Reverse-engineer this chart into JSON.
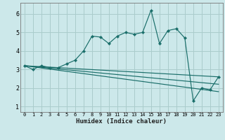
{
  "xlabel": "Humidex (Indice chaleur)",
  "background_color": "#cce8ea",
  "grid_color": "#aacccc",
  "line_color": "#1a6e6a",
  "xlim": [
    -0.5,
    23.5
  ],
  "ylim": [
    0.7,
    6.6
  ],
  "xticks": [
    0,
    1,
    2,
    3,
    4,
    5,
    6,
    7,
    8,
    9,
    10,
    11,
    12,
    13,
    14,
    15,
    16,
    17,
    18,
    19,
    20,
    21,
    22,
    23
  ],
  "yticks": [
    1,
    2,
    3,
    4,
    5,
    6
  ],
  "series": [
    [
      0,
      3.2
    ],
    [
      1,
      3.0
    ],
    [
      2,
      3.2
    ],
    [
      3,
      3.1
    ],
    [
      4,
      3.1
    ],
    [
      5,
      3.3
    ],
    [
      6,
      3.5
    ],
    [
      7,
      4.0
    ],
    [
      8,
      4.8
    ],
    [
      9,
      4.75
    ],
    [
      10,
      4.4
    ],
    [
      11,
      4.8
    ],
    [
      12,
      5.0
    ],
    [
      13,
      4.9
    ],
    [
      14,
      5.0
    ],
    [
      15,
      6.2
    ],
    [
      16,
      4.4
    ],
    [
      17,
      5.1
    ],
    [
      18,
      5.2
    ],
    [
      19,
      4.7
    ],
    [
      20,
      1.3
    ],
    [
      21,
      2.0
    ],
    [
      22,
      1.9
    ],
    [
      23,
      2.6
    ]
  ],
  "linear_series": [
    [
      [
        0,
        3.2
      ],
      [
        23,
        2.6
      ]
    ],
    [
      [
        0,
        3.2
      ],
      [
        23,
        2.2
      ]
    ],
    [
      [
        0,
        3.2
      ],
      [
        23,
        1.8
      ]
    ]
  ]
}
